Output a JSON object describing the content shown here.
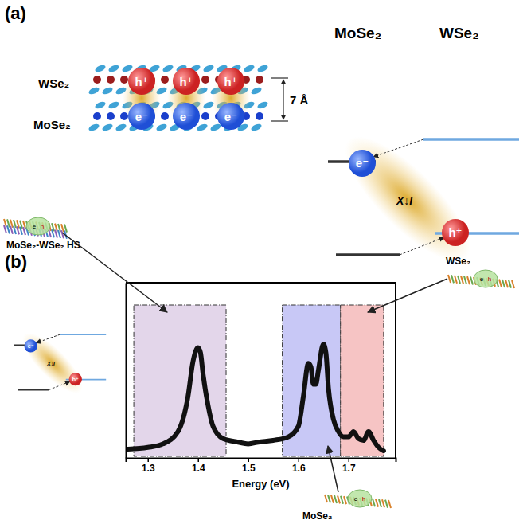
{
  "chart_data": {
    "type": "line",
    "x_label": "Energy (eV)",
    "x": [
      1.26,
      1.3,
      1.33,
      1.36,
      1.38,
      1.39,
      1.4,
      1.405,
      1.41,
      1.42,
      1.43,
      1.45,
      1.48,
      1.5,
      1.52,
      1.55,
      1.58,
      1.6,
      1.61,
      1.62,
      1.625,
      1.63,
      1.635,
      1.64,
      1.65,
      1.655,
      1.66,
      1.67,
      1.68,
      1.69,
      1.7,
      1.71,
      1.72,
      1.73,
      1.74,
      1.75,
      1.76,
      1.77
    ],
    "values": [
      0.05,
      0.06,
      0.08,
      0.15,
      0.35,
      0.55,
      0.63,
      0.6,
      0.48,
      0.3,
      0.18,
      0.11,
      0.09,
      0.08,
      0.09,
      0.1,
      0.12,
      0.18,
      0.35,
      0.54,
      0.52,
      0.42,
      0.42,
      0.5,
      0.65,
      0.6,
      0.4,
      0.22,
      0.15,
      0.12,
      0.12,
      0.15,
      0.11,
      0.1,
      0.15,
      0.1,
      0.06,
      0.04
    ],
    "color": "#111111",
    "xlim": [
      1.256,
      1.794
    ],
    "xticks": [
      1.3,
      1.4,
      1.5,
      1.6,
      1.7
    ],
    "ylim": [
      0,
      1
    ],
    "tick_labels": "x",
    "regions": [
      {
        "name": "MoSe₂-WSe₂ HS",
        "range": [
          1.272,
          1.456
        ],
        "color": "#e3d6ea"
      },
      {
        "name": "MoSe₂",
        "range": [
          1.568,
          1.684
        ],
        "color": "#c8c8f6"
      },
      {
        "name": "WSe₂",
        "range": [
          1.684,
          1.77
        ],
        "color": "#f6c4c4"
      }
    ]
  },
  "diagram": {
    "panel_a": {
      "letter": "(a)",
      "top_layer": "WSe₂",
      "bottom_layer": "MoSe₂",
      "spacing": "7 Å",
      "hole": "h⁺",
      "electron": "e⁻",
      "exciton": "X↓I",
      "band_left": "MoSe₂",
      "band_right": "WSe₂"
    },
    "panel_b": {
      "letter": "(b)",
      "mini_electron": "e",
      "mini_hole": "h"
    }
  }
}
